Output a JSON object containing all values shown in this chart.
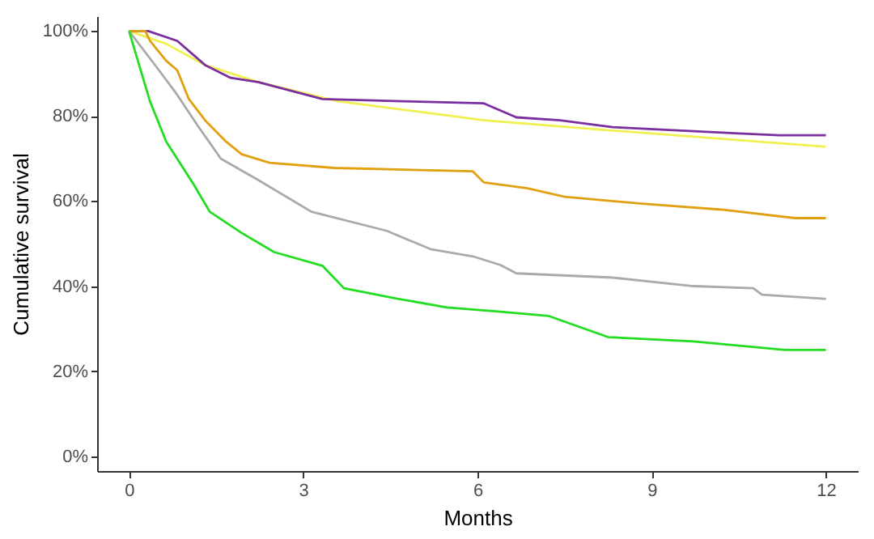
{
  "chart_data": {
    "type": "line",
    "xlabel": "Months",
    "ylabel": "Cumulative survival",
    "xlim": [
      -0.55,
      12.55
    ],
    "ylim": [
      -3.5,
      103.5
    ],
    "xticks": [
      0,
      3,
      6,
      9,
      12
    ],
    "yticks": [
      {
        "value": 0,
        "label": "0%"
      },
      {
        "value": 20,
        "label": "20%"
      },
      {
        "value": 40,
        "label": "40%"
      },
      {
        "value": 60,
        "label": "60%"
      },
      {
        "value": 80,
        "label": "80%"
      },
      {
        "value": 100,
        "label": "100%"
      }
    ],
    "grid": false,
    "legend": false,
    "marker": "none",
    "line_style": "solid",
    "series": [
      {
        "color": "#f0f050",
        "x": [
          0,
          0.64,
          1.31,
          2.22,
          3.6,
          5.0,
          6.11,
          8.33,
          12
        ],
        "values": [
          100,
          97,
          92,
          88,
          83.5,
          81,
          79,
          76.6,
          72.8
        ]
      },
      {
        "color": "#7a2ea0",
        "x": [
          0,
          0.33,
          0.83,
          1.31,
          1.75,
          2.22,
          3.33,
          4.72,
          6.11,
          6.67,
          7.42,
          8.33,
          10.5,
          11.2,
          12
        ],
        "values": [
          100,
          100,
          97.7,
          92,
          89,
          88,
          84,
          83.5,
          83,
          79.7,
          79,
          77.4,
          75.9,
          75.5,
          75.5
        ]
      },
      {
        "color": "#e0a010",
        "x": [
          0,
          0.28,
          0.36,
          0.64,
          0.83,
          1.03,
          1.31,
          1.67,
          1.94,
          2.42,
          3.53,
          5.92,
          6.11,
          6.86,
          7.5,
          8.83,
          10.2,
          11.47,
          12
        ],
        "values": [
          100,
          100,
          97.7,
          93,
          90.8,
          84,
          79,
          74,
          71,
          69,
          67.8,
          67,
          64.4,
          63,
          61,
          59.4,
          58,
          56,
          56
        ]
      },
      {
        "color": "#aaaaaa",
        "x": [
          0,
          0.47,
          0.83,
          1.17,
          1.58,
          2.22,
          3.14,
          4.44,
          5.19,
          5.92,
          6.39,
          6.67,
          8.33,
          9.72,
          10.75,
          10.9,
          12
        ],
        "values": [
          100,
          91.6,
          85,
          78,
          70,
          65,
          57.5,
          53,
          48.7,
          47,
          45,
          43,
          42,
          40,
          39.5,
          38,
          37
        ]
      },
      {
        "color": "#22dd22",
        "x": [
          0,
          0.36,
          0.64,
          1.11,
          1.39,
          1.94,
          2.5,
          3.33,
          3.7,
          4.64,
          5.47,
          6.39,
          7.22,
          8.25,
          9.72,
          11.3,
          12
        ],
        "values": [
          100,
          83.5,
          74,
          64,
          57.5,
          52.5,
          48,
          44.8,
          39.5,
          37,
          35,
          34,
          33,
          28,
          27,
          25,
          25
        ]
      }
    ]
  }
}
